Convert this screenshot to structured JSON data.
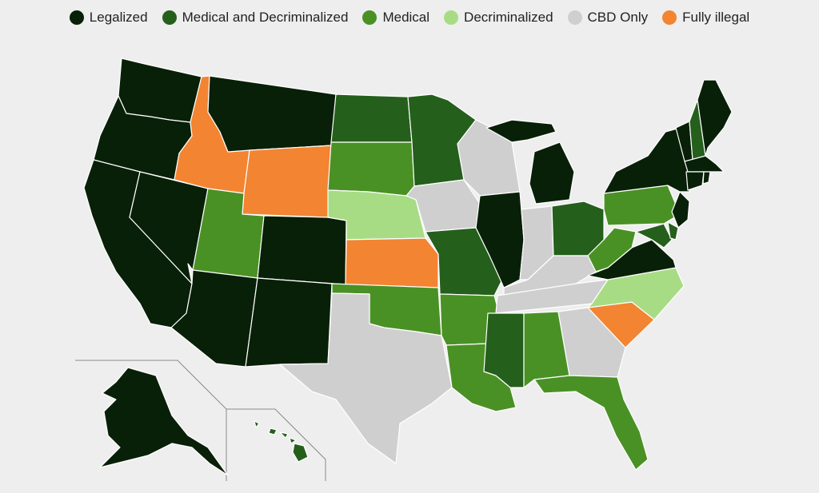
{
  "legend": [
    {
      "key": "legalized",
      "label": "Legalized",
      "color": "#082007"
    },
    {
      "key": "med_decrim",
      "label": "Medical and Decriminalized",
      "color": "#255f1c"
    },
    {
      "key": "medical",
      "label": "Medical",
      "color": "#4a9125"
    },
    {
      "key": "decrim",
      "label": "Decriminalized",
      "color": "#a7dc84"
    },
    {
      "key": "cbd",
      "label": "CBD Only",
      "color": "#cfcfcf"
    },
    {
      "key": "illegal",
      "label": "Fully illegal",
      "color": "#f38432"
    }
  ],
  "map": {
    "subject": "United States",
    "states": {
      "washington": "legalized",
      "oregon": "legalized",
      "california": "legalized",
      "nevada": "legalized",
      "idaho": "illegal",
      "montana": "legalized",
      "wyoming": "illegal",
      "utah": "medical",
      "arizona": "legalized",
      "colorado": "legalized",
      "new-mexico": "legalized",
      "north-dakota": "med_decrim",
      "south-dakota": "medical",
      "nebraska": "decrim",
      "kansas": "illegal",
      "oklahoma": "medical",
      "texas": "cbd",
      "minnesota": "med_decrim",
      "iowa": "cbd",
      "missouri": "med_decrim",
      "arkansas": "medical",
      "louisiana": "medical",
      "wisconsin": "cbd",
      "illinois": "legalized",
      "michigan": "legalized",
      "indiana": "cbd",
      "ohio": "med_decrim",
      "kentucky": "cbd",
      "tennessee": "cbd",
      "mississippi": "med_decrim",
      "alabama": "medical",
      "georgia": "cbd",
      "florida": "medical",
      "south-carolina": "illegal",
      "north-carolina": "decrim",
      "virginia": "legalized",
      "west-virginia": "medical",
      "pennsylvania": "medical",
      "new-york": "legalized",
      "vermont": "legalized",
      "new-hampshire": "med_decrim",
      "maine": "legalized",
      "massachusetts": "legalized",
      "rhode-island": "legalized",
      "connecticut": "legalized",
      "new-jersey": "legalized",
      "delaware": "med_decrim",
      "maryland": "med_decrim",
      "alaska": "legalized",
      "hawaii": "med_decrim"
    }
  }
}
